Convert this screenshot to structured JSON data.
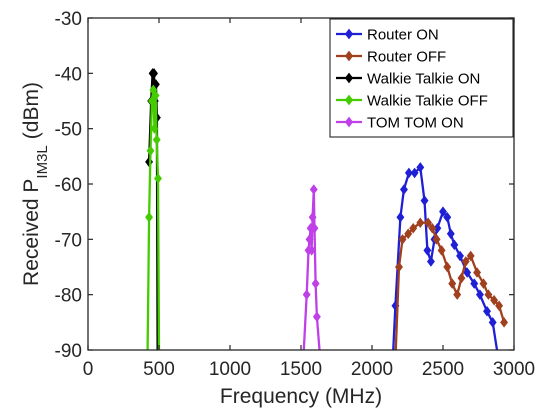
{
  "chart_data": {
    "type": "line",
    "xlabel": "Frequency (MHz)",
    "ylabel_main": "Received P",
    "ylabel_sub": "IM3L",
    "ylabel_unit": "(dBm)",
    "xlim": [
      0,
      3000
    ],
    "ylim": [
      -90,
      -30
    ],
    "xticks": [
      0,
      500,
      1000,
      1500,
      2000,
      2500,
      3000
    ],
    "yticks": [
      -30,
      -40,
      -50,
      -60,
      -70,
      -80,
      -90
    ],
    "grid": false,
    "legend_position": "top-right",
    "series": [
      {
        "name": "Router ON",
        "color": "#1f1fd6",
        "points": [
          [
            2140,
            -95
          ],
          [
            2165,
            -82
          ],
          [
            2200,
            -66
          ],
          [
            2225,
            -61
          ],
          [
            2260,
            -58
          ],
          [
            2300,
            -58
          ],
          [
            2340,
            -57
          ],
          [
            2370,
            -63
          ],
          [
            2390,
            -72
          ],
          [
            2415,
            -74
          ],
          [
            2440,
            -70
          ],
          [
            2460,
            -68
          ],
          [
            2500,
            -65
          ],
          [
            2530,
            -66
          ],
          [
            2555,
            -69
          ],
          [
            2580,
            -71
          ],
          [
            2620,
            -73
          ],
          [
            2670,
            -76
          ],
          [
            2720,
            -78
          ],
          [
            2760,
            -80
          ],
          [
            2810,
            -83
          ],
          [
            2850,
            -85
          ],
          [
            2880,
            -90
          ],
          [
            2910,
            -95
          ]
        ]
      },
      {
        "name": "Router OFF",
        "color": "#a0401e",
        "points": [
          [
            2160,
            -95
          ],
          [
            2190,
            -75
          ],
          [
            2215,
            -70
          ],
          [
            2255,
            -69
          ],
          [
            2290,
            -68
          ],
          [
            2340,
            -67
          ],
          [
            2395,
            -67
          ],
          [
            2425,
            -68
          ],
          [
            2455,
            -70
          ],
          [
            2490,
            -72
          ],
          [
            2530,
            -75
          ],
          [
            2565,
            -78
          ],
          [
            2600,
            -80
          ],
          [
            2630,
            -77
          ],
          [
            2660,
            -74
          ],
          [
            2695,
            -73
          ],
          [
            2740,
            -76
          ],
          [
            2785,
            -78
          ],
          [
            2820,
            -80
          ],
          [
            2860,
            -81
          ],
          [
            2895,
            -82
          ],
          [
            2930,
            -85
          ]
        ]
      },
      {
        "name": "Walkie Talkie ON",
        "color": "#000000",
        "points": [
          [
            430,
            -56
          ],
          [
            445,
            -45
          ],
          [
            455,
            -40
          ],
          [
            465,
            -40
          ],
          [
            470,
            -45
          ],
          [
            478,
            -42
          ],
          [
            485,
            -48
          ],
          [
            490,
            -90
          ]
        ]
      },
      {
        "name": "Walkie Talkie OFF",
        "color": "#44cc00",
        "points": [
          [
            420,
            -90
          ],
          [
            430,
            -66
          ],
          [
            440,
            -54
          ],
          [
            450,
            -45
          ],
          [
            460,
            -43
          ],
          [
            468,
            -50
          ],
          [
            476,
            -44
          ],
          [
            484,
            -52
          ],
          [
            493,
            -59
          ],
          [
            500,
            -90
          ]
        ]
      },
      {
        "name": "TOM TOM ON",
        "color": "#c040e8",
        "points": [
          [
            1520,
            -90
          ],
          [
            1540,
            -80
          ],
          [
            1553,
            -72
          ],
          [
            1560,
            -70
          ],
          [
            1568,
            -68
          ],
          [
            1575,
            -72
          ],
          [
            1582,
            -66
          ],
          [
            1590,
            -61
          ],
          [
            1595,
            -68
          ],
          [
            1603,
            -78
          ],
          [
            1612,
            -84
          ],
          [
            1630,
            -90
          ]
        ]
      }
    ]
  }
}
